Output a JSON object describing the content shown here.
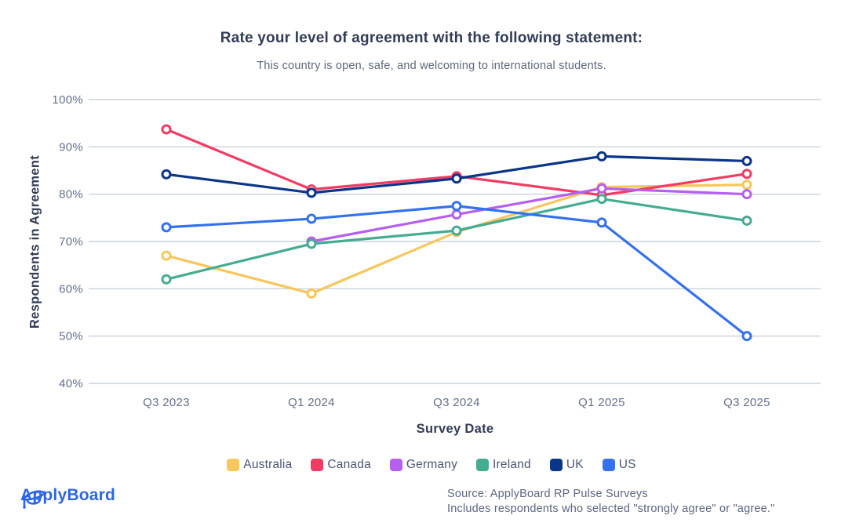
{
  "header": {
    "title": "Rate your level of agreement with the following statement:",
    "subtitle": "This country is open, safe, and welcoming to international students."
  },
  "chart_data": {
    "type": "line",
    "categories": [
      "Q3 2023",
      "Q1 2024",
      "Q3 2024",
      "Q1 2025",
      "Q3 2025"
    ],
    "series": [
      {
        "name": "Australia",
        "color": "#F7C65C",
        "values": [
          67,
          59,
          72,
          81.5,
          82
        ]
      },
      {
        "name": "Canada",
        "color": "#F23B63",
        "values": [
          93.7,
          81,
          83.8,
          79.8,
          84.3
        ]
      },
      {
        "name": "Germany",
        "color": "#B55FEE",
        "values": [
          null,
          70,
          75.7,
          81.2,
          80
        ]
      },
      {
        "name": "Ireland",
        "color": "#45AB91",
        "values": [
          62,
          69.5,
          72.3,
          79,
          74.4
        ]
      },
      {
        "name": "UK",
        "color": "#0A3588",
        "values": [
          84.2,
          80.3,
          83.3,
          88,
          87
        ]
      },
      {
        "name": "US",
        "color": "#3471EE",
        "values": [
          73,
          74.8,
          77.5,
          74,
          50
        ]
      }
    ],
    "title": "Rate your level of agreement with the following statement:",
    "subtitle": "This country is open, safe, and welcoming to international students.",
    "xlabel": "Survey Date",
    "ylabel": "Respondents in Agreement",
    "ylim": [
      40,
      100
    ],
    "yticks": [
      "100%",
      "90%",
      "80%",
      "70%",
      "60%",
      "50%",
      "40%"
    ],
    "grid": "horizontal-only",
    "legend_position": "bottom",
    "gridline_color": "#CBD0DB",
    "tick_label_color": "#636E8D"
  },
  "footer": {
    "brand": "ApplyBoard",
    "source_line1": "Source: ApplyBoard RP Pulse Surveys",
    "source_line2": "Includes respondents who selected \"strongly agree\" or \"agree.\""
  }
}
